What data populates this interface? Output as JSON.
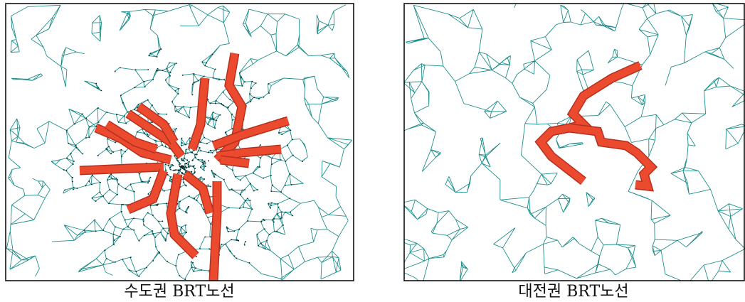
{
  "maps": [
    {
      "caption": "수도권 BRT노선"
    },
    {
      "caption": "대전권 BRT노선"
    }
  ]
}
